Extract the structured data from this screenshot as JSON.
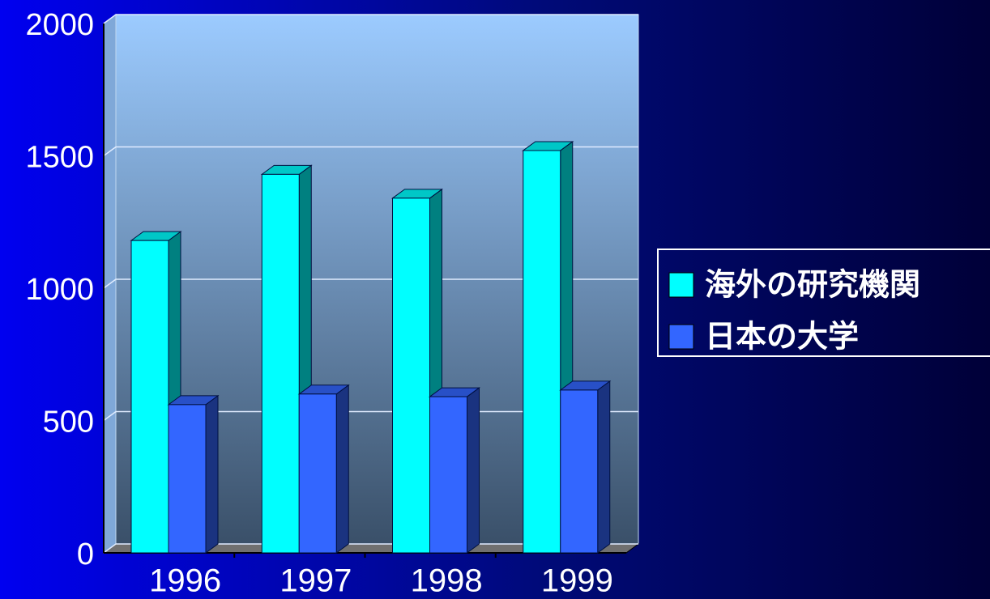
{
  "chart_data": {
    "type": "bar3d",
    "categories": [
      "1996",
      "1997",
      "1998",
      "1999"
    ],
    "series": [
      {
        "name": "海外の研究機関",
        "color": "#00ffff",
        "values": [
          1180,
          1430,
          1340,
          1520
        ]
      },
      {
        "name": "日本の大学",
        "color": "#3366ff",
        "values": [
          560,
          600,
          590,
          615
        ]
      }
    ],
    "ylim": [
      0,
      2000
    ],
    "yticks": [
      0,
      500,
      1000,
      1500,
      2000
    ],
    "grid": true,
    "legend": "right"
  }
}
